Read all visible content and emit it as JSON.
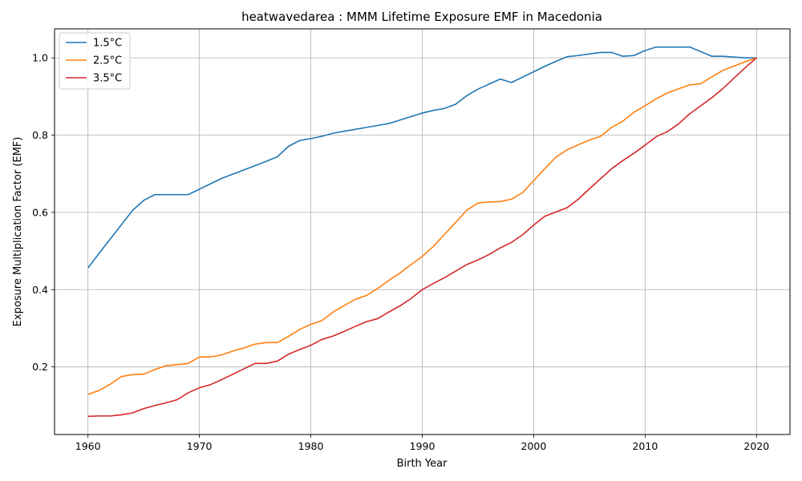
{
  "chart_data": {
    "type": "line",
    "title": "heatwavedarea : MMM Lifetime Exposure EMF in Macedonia",
    "xlabel": "Birth Year",
    "ylabel": "Exposure Multiplication Factor (EMF)",
    "xlim": [
      1957,
      2023
    ],
    "ylim": [
      0.025,
      1.075
    ],
    "xticks": [
      1960,
      1970,
      1980,
      1990,
      2000,
      2010,
      2020
    ],
    "yticks": [
      0.2,
      0.4,
      0.6,
      0.8,
      1.0
    ],
    "grid": true,
    "legend_position": "upper-left",
    "x": [
      1960,
      1961,
      1962,
      1963,
      1964,
      1965,
      1966,
      1967,
      1968,
      1969,
      1970,
      1971,
      1972,
      1973,
      1974,
      1975,
      1976,
      1977,
      1978,
      1979,
      1980,
      1981,
      1982,
      1983,
      1984,
      1985,
      1986,
      1987,
      1988,
      1989,
      1990,
      1991,
      1992,
      1993,
      1994,
      1995,
      1996,
      1997,
      1998,
      1999,
      2000,
      2001,
      2002,
      2003,
      2004,
      2005,
      2006,
      2007,
      2008,
      2009,
      2010,
      2011,
      2012,
      2013,
      2014,
      2015,
      2016,
      2017,
      2018,
      2019,
      2020
    ],
    "series": [
      {
        "name": "1.5°C",
        "color": "#1f77b4",
        "values": [
          0.456,
          0.494,
          0.531,
          0.568,
          0.605,
          0.631,
          0.646,
          0.646,
          0.646,
          0.646,
          0.66,
          0.674,
          0.688,
          0.699,
          0.71,
          0.721,
          0.732,
          0.744,
          0.771,
          0.786,
          0.791,
          0.797,
          0.805,
          0.81,
          0.815,
          0.82,
          0.825,
          0.83,
          0.839,
          0.848,
          0.857,
          0.864,
          0.869,
          0.88,
          0.902,
          0.919,
          0.932,
          0.945,
          0.936,
          0.95,
          0.964,
          0.978,
          0.991,
          1.003,
          1.006,
          1.01,
          1.014,
          1.014,
          1.004,
          1.006,
          1.019,
          1.028,
          1.028,
          1.028,
          1.028,
          1.016,
          1.004,
          1.004,
          1.002,
          1.0,
          1.0
        ]
      },
      {
        "name": "2.5°C",
        "color": "#ff7f0e",
        "values": [
          0.129,
          0.139,
          0.155,
          0.175,
          0.18,
          0.181,
          0.193,
          0.203,
          0.206,
          0.209,
          0.226,
          0.226,
          0.231,
          0.241,
          0.249,
          0.259,
          0.263,
          0.263,
          0.279,
          0.297,
          0.31,
          0.32,
          0.342,
          0.359,
          0.375,
          0.385,
          0.403,
          0.424,
          0.443,
          0.465,
          0.486,
          0.512,
          0.543,
          0.574,
          0.606,
          0.624,
          0.627,
          0.628,
          0.634,
          0.651,
          0.682,
          0.713,
          0.743,
          0.762,
          0.775,
          0.787,
          0.797,
          0.82,
          0.836,
          0.859,
          0.876,
          0.894,
          0.909,
          0.92,
          0.93,
          0.933,
          0.951,
          0.968,
          0.979,
          0.99,
          1.0
        ]
      },
      {
        "name": "3.5°C",
        "color": "#d62728",
        "values": [
          0.072,
          0.073,
          0.073,
          0.076,
          0.081,
          0.092,
          0.1,
          0.107,
          0.115,
          0.133,
          0.146,
          0.154,
          0.167,
          0.181,
          0.195,
          0.209,
          0.209,
          0.215,
          0.233,
          0.245,
          0.256,
          0.271,
          0.28,
          0.292,
          0.305,
          0.317,
          0.325,
          0.342,
          0.358,
          0.377,
          0.4,
          0.416,
          0.431,
          0.448,
          0.465,
          0.477,
          0.491,
          0.508,
          0.522,
          0.542,
          0.567,
          0.59,
          0.601,
          0.612,
          0.634,
          0.661,
          0.687,
          0.713,
          0.734,
          0.753,
          0.774,
          0.796,
          0.809,
          0.829,
          0.855,
          0.876,
          0.897,
          0.921,
          0.948,
          0.975,
          1.0
        ]
      }
    ]
  }
}
